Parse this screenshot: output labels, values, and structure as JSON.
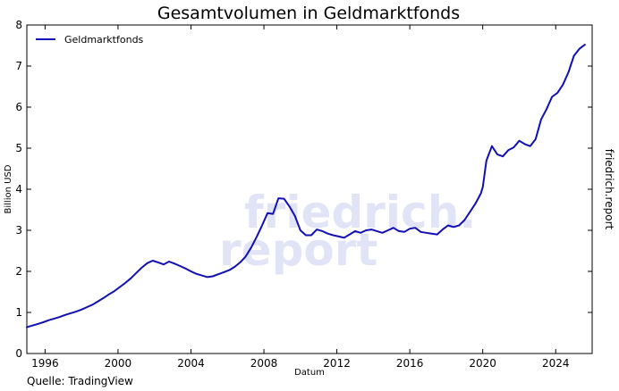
{
  "chart_data": {
    "type": "line",
    "title": "Gesamtvolumen in Geldmarktfonds",
    "xlabel": "Datum",
    "ylabel": "Billion USD",
    "right_label": "friedrich.report",
    "source": "Quelle: TradingView",
    "watermark": [
      "friedrich.",
      "report"
    ],
    "xlim": [
      1995,
      2026
    ],
    "ylim": [
      0,
      8
    ],
    "x_ticks": [
      1996,
      2000,
      2004,
      2008,
      2012,
      2016,
      2020,
      2024
    ],
    "y_ticks": [
      0,
      1,
      2,
      3,
      4,
      5,
      6,
      7,
      8
    ],
    "grid": false,
    "legend_position": "top-left",
    "series": [
      {
        "name": "Geldmarktfonds",
        "color": "#1010b4",
        "x": [
          1995.0,
          1995.3,
          1995.6,
          1995.9,
          1996.2,
          1996.5,
          1996.8,
          1997.1,
          1997.4,
          1997.7,
          1998.0,
          1998.3,
          1998.6,
          1998.9,
          1999.2,
          1999.5,
          1999.8,
          2000.1,
          2000.4,
          2000.7,
          2001.0,
          2001.3,
          2001.6,
          2001.9,
          2002.2,
          2002.5,
          2002.8,
          2003.1,
          2003.4,
          2003.7,
          2004.0,
          2004.3,
          2004.6,
          2004.9,
          2005.2,
          2005.5,
          2005.8,
          2006.1,
          2006.4,
          2006.7,
          2007.0,
          2007.3,
          2007.6,
          2007.9,
          2008.2,
          2008.5,
          2008.8,
          2009.1,
          2009.4,
          2009.7,
          2010.0,
          2010.3,
          2010.6,
          2010.9,
          2011.2,
          2011.5,
          2011.8,
          2012.1,
          2012.4,
          2012.7,
          2013.0,
          2013.3,
          2013.6,
          2013.9,
          2014.2,
          2014.5,
          2014.8,
          2015.1,
          2015.4,
          2015.7,
          2016.0,
          2016.3,
          2016.6,
          2016.9,
          2017.2,
          2017.5,
          2017.8,
          2018.1,
          2018.4,
          2018.7,
          2019.0,
          2019.3,
          2019.6,
          2019.9,
          2020.0,
          2020.2,
          2020.5,
          2020.8,
          2021.1,
          2021.4,
          2021.7,
          2022.0,
          2022.3,
          2022.6,
          2022.9,
          2023.2,
          2023.5,
          2023.8,
          2024.1,
          2024.4,
          2024.7,
          2025.0,
          2025.3,
          2025.6
        ],
        "y": [
          0.64,
          0.68,
          0.72,
          0.76,
          0.81,
          0.85,
          0.89,
          0.94,
          0.98,
          1.02,
          1.07,
          1.13,
          1.19,
          1.27,
          1.35,
          1.44,
          1.52,
          1.62,
          1.72,
          1.83,
          1.96,
          2.09,
          2.2,
          2.26,
          2.22,
          2.17,
          2.24,
          2.19,
          2.13,
          2.07,
          2.0,
          1.94,
          1.9,
          1.86,
          1.88,
          1.93,
          1.98,
          2.03,
          2.11,
          2.22,
          2.36,
          2.58,
          2.84,
          3.12,
          3.42,
          3.4,
          3.78,
          3.77,
          3.58,
          3.35,
          3.0,
          2.88,
          2.88,
          3.02,
          2.98,
          2.92,
          2.88,
          2.85,
          2.82,
          2.9,
          2.98,
          2.94,
          3.0,
          3.02,
          2.98,
          2.94,
          3.0,
          3.06,
          2.98,
          2.96,
          3.04,
          3.06,
          2.96,
          2.94,
          2.92,
          2.9,
          3.02,
          3.12,
          3.08,
          3.12,
          3.25,
          3.45,
          3.65,
          3.9,
          4.05,
          4.7,
          5.05,
          4.85,
          4.8,
          4.95,
          5.02,
          5.18,
          5.1,
          5.05,
          5.22,
          5.7,
          5.95,
          6.25,
          6.35,
          6.55,
          6.85,
          7.25,
          7.42,
          7.52
        ]
      }
    ]
  }
}
